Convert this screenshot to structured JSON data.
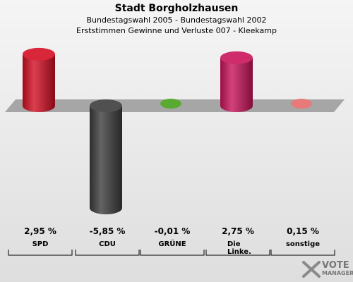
{
  "header": {
    "title": "Stadt Borgholzhausen",
    "subtitle1": "Bundestagswahl 2005 - Bundestagswahl 2002",
    "subtitle2": "Erststimmen Gewinne und Verluste 007 - Kleekamp"
  },
  "chart_data": {
    "type": "bar",
    "categories": [
      "SPD",
      "CDU",
      "GRÜNE",
      "Die Linke.",
      "sonstige"
    ],
    "category_lines": [
      [
        "SPD"
      ],
      [
        "CDU"
      ],
      [
        "GRÜNE"
      ],
      [
        "Die",
        "Linke."
      ],
      [
        "sonstige"
      ]
    ],
    "values": [
      2.95,
      -5.85,
      -0.01,
      2.75,
      0.15
    ],
    "value_labels": [
      "2,95 %",
      "-5,85 %",
      "-0,01 %",
      "2,75 %",
      "0,15 %"
    ],
    "colors": [
      "#d20f23",
      "#3c3c3c",
      "#5aaa32",
      "#c8145a",
      "#e87a7a"
    ],
    "ylim": [
      -5.85,
      2.95
    ]
  },
  "logo": {
    "line1": "VOTE",
    "line2": "MANAGER"
  }
}
